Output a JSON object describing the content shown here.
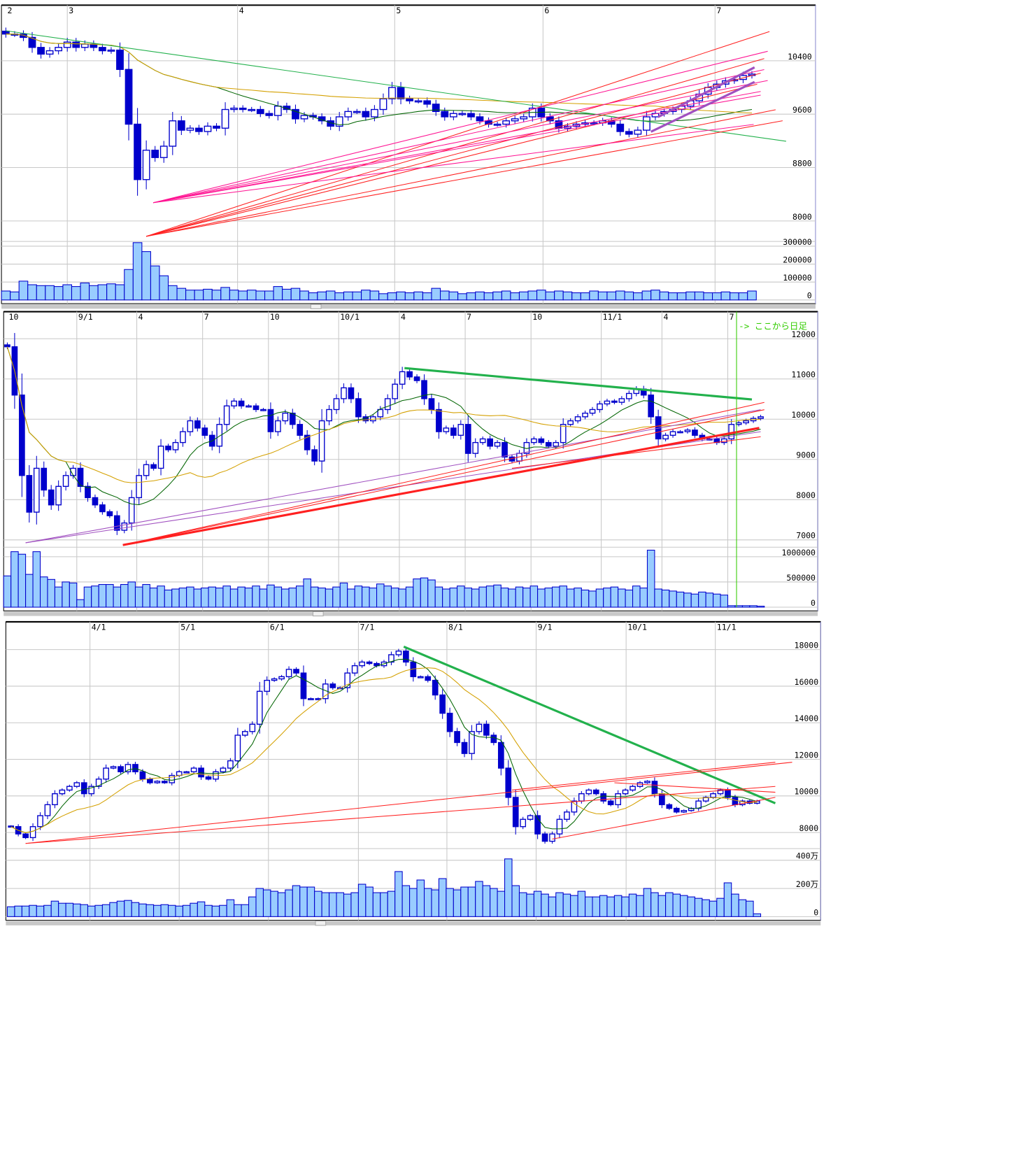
{
  "colors": {
    "candle": "#0000cc",
    "volume_fill": "#99ccff",
    "grid": "#c8c8c8",
    "ma_short": "#006400",
    "ma_long": "#d4a000",
    "trend_red": "#ff2020",
    "trend_pink": "#ff1493",
    "trend_green": "#22b14c",
    "trend_purple": "#a050c0",
    "annotation": "#33cc00"
  },
  "chart_data": [
    {
      "type": "candlestick",
      "x_labels": [
        {
          "idx": 0,
          "text": "2"
        },
        {
          "idx": 7,
          "text": "3"
        },
        {
          "idx": 26.4,
          "text": "4"
        },
        {
          "idx": 44.3,
          "text": "5"
        },
        {
          "idx": 61.2,
          "text": "6"
        },
        {
          "idx": 80.8,
          "text": "7"
        }
      ],
      "price_ticks": [
        8000,
        8800,
        9600,
        10400
      ],
      "volume_ticks": [
        {
          "v": 0,
          "text": "0"
        },
        {
          "v": 100000,
          "text": "100000"
        },
        {
          "v": 200000,
          "text": "200000"
        },
        {
          "v": 300000,
          "text": "300000"
        }
      ],
      "close": [
        10800,
        10800,
        10750,
        10600,
        10500,
        10550,
        10600,
        10680,
        10600,
        10650,
        10600,
        10550,
        10560,
        10270,
        9450,
        8620,
        9060,
        8950,
        9120,
        9500,
        9360,
        9390,
        9340,
        9420,
        9390,
        9670,
        9690,
        9670,
        9670,
        9610,
        9580,
        9720,
        9670,
        9530,
        9580,
        9560,
        9500,
        9420,
        9560,
        9640,
        9640,
        9560,
        9670,
        9830,
        10000,
        9830,
        9800,
        9800,
        9750,
        9640,
        9560,
        9610,
        9610,
        9560,
        9500,
        9450,
        9450,
        9500,
        9530,
        9560,
        9690,
        9560,
        9500,
        9390,
        9420,
        9450,
        9470,
        9470,
        9500,
        9450,
        9340,
        9300,
        9360,
        9560,
        9610,
        9640,
        9670,
        9720,
        9800,
        9900,
        10000,
        10050,
        10100,
        10120,
        10180,
        10200
      ],
      "volume": [
        50000,
        45000,
        105000,
        85000,
        80000,
        80000,
        75000,
        85000,
        75000,
        95000,
        80000,
        85000,
        90000,
        85000,
        170000,
        320000,
        270000,
        190000,
        135000,
        80000,
        65000,
        55000,
        55000,
        60000,
        55000,
        70000,
        55000,
        50000,
        55000,
        50000,
        50000,
        75000,
        60000,
        65000,
        50000,
        40000,
        45000,
        50000,
        40000,
        45000,
        45000,
        55000,
        50000,
        35000,
        40000,
        45000,
        40000,
        45000,
        40000,
        65000,
        50000,
        45000,
        35000,
        40000,
        45000,
        40000,
        45000,
        50000,
        40000,
        45000,
        50000,
        55000,
        45000,
        50000,
        45000,
        40000,
        40000,
        50000,
        45000,
        45000,
        50000,
        45000,
        40000,
        50000,
        55000,
        45000,
        40000,
        40000,
        45000,
        45000,
        40000,
        40000,
        45000,
        40000,
        40000,
        50000
      ],
      "moving_averages": [
        {
          "period": 25,
          "color": "#006400"
        },
        {
          "period": 75,
          "color": "#d4a000"
        }
      ],
      "trendlines": [
        {
          "from": [
            0,
            10849
          ],
          "to": [
            88.9,
            9194
          ],
          "color": "#22b14c",
          "width": 1
        },
        {
          "from": [
            16,
            7770
          ],
          "to": [
            87,
            10838
          ],
          "color": "#ff2020",
          "width": 1
        },
        {
          "from": [
            16,
            7770
          ],
          "to": [
            86.4,
            10433
          ],
          "color": "#ff2020",
          "width": 1
        },
        {
          "from": [
            16,
            7770
          ],
          "to": [
            86,
            10214
          ],
          "color": "#ff2020",
          "width": 1
        },
        {
          "from": [
            16,
            7770
          ],
          "to": [
            85.6,
            10049
          ],
          "color": "#ff2020",
          "width": 1
        },
        {
          "from": [
            16,
            7770
          ],
          "to": [
            87.7,
            9666
          ],
          "color": "#ff2020",
          "width": 1
        },
        {
          "from": [
            16,
            7770
          ],
          "to": [
            88.5,
            9501
          ],
          "color": "#ff2020",
          "width": 1
        },
        {
          "from": [
            16.8,
            8274
          ],
          "to": [
            86.8,
            10542
          ],
          "color": "#ff1493",
          "width": 1
        },
        {
          "from": [
            16.8,
            8274
          ],
          "to": [
            86.4,
            10268
          ],
          "color": "#ff1493",
          "width": 1
        },
        {
          "from": [
            16.8,
            8274
          ],
          "to": [
            86.8,
            10104
          ],
          "color": "#ff1493",
          "width": 1
        },
        {
          "from": [
            16.8,
            8274
          ],
          "to": [
            86,
            9885
          ],
          "color": "#ff1493",
          "width": 1
        },
        {
          "from": [
            16.8,
            8274
          ],
          "to": [
            86,
            9940
          ],
          "color": "#ff1493",
          "width": 1
        },
        {
          "from": [
            16.8,
            8274
          ],
          "to": [
            85.2,
            9446
          ],
          "color": "#ff1493",
          "width": 1
        },
        {
          "from": [
            73.5,
            9337
          ],
          "to": [
            85.3,
            10082
          ],
          "color": "#a050c0",
          "width": 3
        },
        {
          "from": [
            74.3,
            9556
          ],
          "to": [
            85.3,
            10301
          ],
          "color": "#a050c0",
          "width": 3
        }
      ]
    },
    {
      "type": "candlestick",
      "x_labels": [
        {
          "idx": 0,
          "text": "10"
        },
        {
          "idx": 9.5,
          "text": "9/1"
        },
        {
          "idx": 17.7,
          "text": "4"
        },
        {
          "idx": 26.7,
          "text": "7"
        },
        {
          "idx": 35.7,
          "text": "10"
        },
        {
          "idx": 45.3,
          "text": "10/1"
        },
        {
          "idx": 53.6,
          "text": "4"
        },
        {
          "idx": 62.6,
          "text": "7"
        },
        {
          "idx": 71.6,
          "text": "10"
        },
        {
          "idx": 81.2,
          "text": "11/1"
        },
        {
          "idx": 89.5,
          "text": "4"
        },
        {
          "idx": 98.5,
          "text": "7"
        }
      ],
      "price_ticks": [
        7000,
        8000,
        9000,
        10000,
        11000,
        12000
      ],
      "volume_ticks": [
        {
          "v": 0,
          "text": "0"
        },
        {
          "v": 500000,
          "text": "500000"
        },
        {
          "v": 1000000,
          "text": "1000000"
        }
      ],
      "annotation": {
        "idx": 99.7,
        "text": "-> ここから日足"
      },
      "close": [
        11800,
        10600,
        8600,
        7690,
        8780,
        8240,
        7870,
        8330,
        8600,
        8780,
        8330,
        8050,
        7870,
        7700,
        7600,
        7240,
        7420,
        8050,
        8600,
        8870,
        8780,
        9330,
        9240,
        9420,
        9690,
        9960,
        9780,
        9600,
        9330,
        9870,
        10330,
        10450,
        10330,
        10330,
        10240,
        10240,
        9690,
        9960,
        10150,
        9870,
        9600,
        9240,
        8960,
        9960,
        10240,
        10510,
        10780,
        10510,
        10060,
        9960,
        10060,
        10240,
        10510,
        10870,
        11180,
        11050,
        10960,
        10510,
        10240,
        9690,
        9780,
        9600,
        9870,
        9150,
        9420,
        9510,
        9330,
        9420,
        9060,
        8960,
        9150,
        9420,
        9510,
        9420,
        9330,
        9420,
        9870,
        9960,
        10060,
        10150,
        10240,
        10380,
        10450,
        10420,
        10510,
        10640,
        10750,
        10600,
        10060,
        9510,
        9600,
        9690,
        9690,
        9730,
        9600,
        9510,
        9510,
        9420,
        9510,
        9870,
        9910,
        9960,
        10020,
        10060
      ],
      "volume": [
        620000,
        1100000,
        1050000,
        650000,
        1100000,
        600000,
        550000,
        400000,
        500000,
        480000,
        150000,
        400000,
        420000,
        450000,
        450000,
        400000,
        450000,
        500000,
        400000,
        450000,
        380000,
        420000,
        340000,
        360000,
        380000,
        400000,
        360000,
        380000,
        400000,
        380000,
        420000,
        360000,
        400000,
        380000,
        420000,
        360000,
        440000,
        400000,
        360000,
        380000,
        420000,
        560000,
        400000,
        380000,
        360000,
        400000,
        480000,
        360000,
        420000,
        400000,
        380000,
        460000,
        420000,
        380000,
        360000,
        400000,
        560000,
        580000,
        540000,
        400000,
        360000,
        380000,
        420000,
        380000,
        360000,
        400000,
        420000,
        440000,
        380000,
        360000,
        400000,
        380000,
        420000,
        360000,
        380000,
        400000,
        420000,
        360000,
        380000,
        340000,
        320000,
        360000,
        380000,
        400000,
        360000,
        340000,
        420000,
        380000,
        1130000,
        360000,
        340000,
        320000,
        300000,
        280000,
        260000,
        300000,
        280000,
        260000,
        240000,
        30000,
        30000,
        30000,
        30000,
        20000
      ],
      "moving_averages": [
        {
          "period": 9,
          "color": "#006400"
        },
        {
          "period": 26,
          "color": "#d4a000"
        }
      ],
      "trendlines": [
        {
          "from": [
            54.3,
            11270
          ],
          "to": [
            101.8,
            10490
          ],
          "color": "#22b14c",
          "width": 3
        },
        {
          "from": [
            2.5,
            6928
          ],
          "to": [
            103,
            10236
          ],
          "color": "#a050c0",
          "width": 1
        },
        {
          "from": [
            2.5,
            6928
          ],
          "to": [
            103,
            9690
          ],
          "color": "#a050c0",
          "width": 1
        },
        {
          "from": [
            15.8,
            6873
          ],
          "to": [
            102.8,
            9782
          ],
          "color": "#ff2020",
          "width": 3
        },
        {
          "from": [
            15.8,
            6873
          ],
          "to": [
            103.5,
            10418
          ],
          "color": "#ff2020",
          "width": 1
        },
        {
          "from": [
            15.8,
            6873
          ],
          "to": [
            103.5,
            10236
          ],
          "color": "#ff2020",
          "width": 1
        },
        {
          "from": [
            69,
            8780
          ],
          "to": [
            103,
            9563
          ],
          "color": "#ff2020",
          "width": 1
        }
      ]
    },
    {
      "type": "candlestick",
      "x_labels": [
        {
          "idx": 10.8,
          "text": "4/1"
        },
        {
          "idx": 23,
          "text": "5/1"
        },
        {
          "idx": 35.2,
          "text": "6/1"
        },
        {
          "idx": 47.5,
          "text": "7/1"
        },
        {
          "idx": 59.6,
          "text": "8/1"
        },
        {
          "idx": 71.8,
          "text": "9/1"
        },
        {
          "idx": 84.1,
          "text": "10/1"
        },
        {
          "idx": 96.3,
          "text": "11/1"
        }
      ],
      "price_ticks": [
        8000,
        10000,
        12000,
        14000,
        16000,
        18000
      ],
      "volume_ticks": [
        {
          "v": 0,
          "text": "0"
        },
        {
          "v": 2000000,
          "text": "200万"
        },
        {
          "v": 4000000,
          "text": "400万"
        }
      ],
      "close": [
        8320,
        7920,
        7720,
        8320,
        8920,
        9520,
        10120,
        10320,
        10520,
        10720,
        10120,
        10520,
        10920,
        11520,
        11600,
        11320,
        11720,
        11320,
        10920,
        10720,
        10800,
        10720,
        11120,
        11320,
        11320,
        11520,
        11040,
        10920,
        11320,
        11520,
        11920,
        13320,
        13520,
        13920,
        15720,
        16320,
        16400,
        16520,
        16920,
        16720,
        15320,
        15320,
        15320,
        16120,
        15920,
        15920,
        16720,
        17120,
        17320,
        17240,
        17120,
        17320,
        17720,
        17920,
        17320,
        16520,
        16520,
        16320,
        15520,
        14520,
        13520,
        12920,
        12320,
        13520,
        13920,
        13320,
        12920,
        11520,
        9920,
        8320,
        8720,
        8920,
        7920,
        7520,
        7920,
        8720,
        9120,
        9720,
        10120,
        10320,
        10120,
        9720,
        9520,
        10120,
        10320,
        10520,
        10720,
        10800,
        10120,
        9520,
        9320,
        9120,
        9200,
        9320,
        9720,
        9920,
        10120,
        10320,
        9920,
        9520,
        9720,
        9600,
        9720
      ],
      "volume": [
        700000,
        750000,
        750000,
        800000,
        750000,
        800000,
        1100000,
        950000,
        950000,
        900000,
        850000,
        750000,
        800000,
        850000,
        1000000,
        1100000,
        1150000,
        1000000,
        900000,
        850000,
        800000,
        850000,
        800000,
        750000,
        800000,
        950000,
        1050000,
        800000,
        750000,
        800000,
        1200000,
        850000,
        850000,
        1400000,
        2000000,
        1900000,
        1800000,
        1700000,
        1900000,
        2200000,
        2100000,
        2100000,
        1800000,
        1700000,
        1700000,
        1700000,
        1600000,
        1700000,
        2300000,
        2100000,
        1700000,
        1700000,
        1800000,
        3200000,
        2200000,
        2000000,
        2600000,
        2000000,
        1900000,
        2700000,
        2000000,
        1900000,
        2100000,
        2100000,
        2500000,
        2200000,
        2000000,
        1800000,
        4100000,
        2200000,
        1700000,
        1600000,
        1800000,
        1600000,
        1400000,
        1700000,
        1600000,
        1500000,
        1800000,
        1400000,
        1400000,
        1500000,
        1400000,
        1500000,
        1400000,
        1600000,
        1500000,
        2000000,
        1700000,
        1500000,
        1700000,
        1600000,
        1500000,
        1400000,
        1300000,
        1200000,
        1100000,
        1300000,
        2400000,
        1600000,
        1200000,
        1100000,
        200000
      ],
      "moving_averages": [
        {
          "period": 5,
          "color": "#006400"
        },
        {
          "period": 13,
          "color": "#d4a000"
        }
      ],
      "trendlines": [
        {
          "from": [
            53.7,
            18160
          ],
          "to": [
            104.5,
            9600
          ],
          "color": "#22b14c",
          "width": 3
        },
        {
          "from": [
            2,
            7400
          ],
          "to": [
            106.8,
            11840
          ],
          "color": "#ff2020",
          "width": 1
        },
        {
          "from": [
            2,
            7400
          ],
          "to": [
            104.5,
            10520
          ],
          "color": "#ff2020",
          "width": 1
        },
        {
          "from": [
            74,
            7640
          ],
          "to": [
            104.5,
            9920
          ],
          "color": "#ff2020",
          "width": 1
        },
        {
          "from": [
            68.5,
            10320
          ],
          "to": [
            104.5,
            11840
          ],
          "color": "#ff2020",
          "width": 1
        },
        {
          "from": [
            82.5,
            10720
          ],
          "to": [
            104.5,
            10200
          ],
          "color": "#ff2020",
          "width": 1
        }
      ]
    }
  ]
}
